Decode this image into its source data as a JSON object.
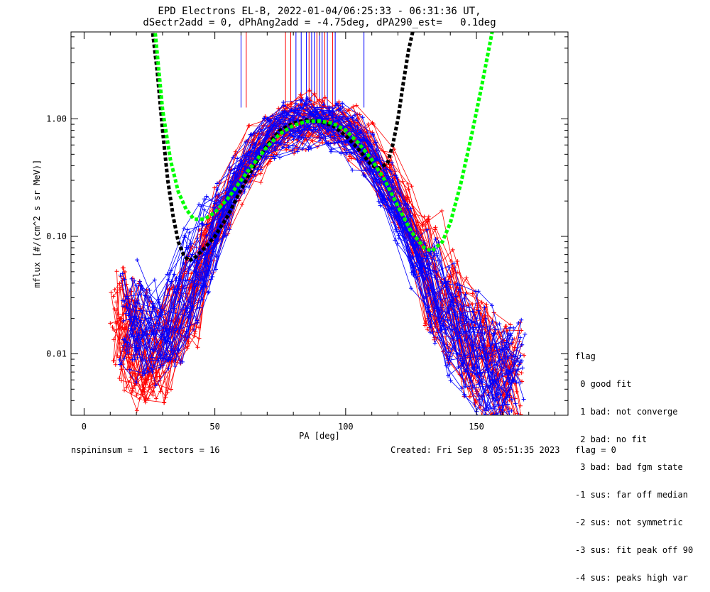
{
  "chart_data": {
    "type": "line",
    "title": "EPD Electrons EL-B, 2022-01-04/06:25:33 - 06:31:36 UT,",
    "subtitle": "dSectr2add = 0, dPhAng2add = -4.75deg, dPA290_est=   0.1deg",
    "xlabel": "PA [deg]",
    "ylabel": "mflux [#/(cm^2 s sr MeV)]",
    "xlim": [
      -5,
      185
    ],
    "ylim": [
      0.003,
      5.5
    ],
    "yscale": "log",
    "xticks": [
      0,
      50,
      100,
      150
    ],
    "yticks": [
      {
        "value": 0.01,
        "label": "0.01"
      },
      {
        "value": 0.1,
        "label": "0.10"
      },
      {
        "value": 1.0,
        "label": "1.00"
      }
    ],
    "grid": false,
    "colors": {
      "red": "#ff0000",
      "blue": "#0000ff",
      "black_fit": "#000000",
      "green_fit": "#00ff00"
    },
    "series": [
      {
        "color": "red",
        "style": "many-sweeps-with-plus-markers",
        "x": [
          14,
          17,
          22,
          28,
          34,
          41,
          47,
          53,
          59,
          65,
          72,
          78,
          84,
          90,
          96,
          103,
          109,
          116,
          122,
          128,
          134,
          141,
          147,
          153,
          159,
          165
        ],
        "y": [
          0.02,
          0.015,
          0.012,
          0.01,
          0.015,
          0.03,
          0.08,
          0.16,
          0.3,
          0.5,
          0.7,
          0.85,
          0.95,
          1.0,
          0.95,
          0.78,
          0.55,
          0.33,
          0.18,
          0.09,
          0.045,
          0.025,
          0.014,
          0.009,
          0.007,
          0.006
        ]
      },
      {
        "color": "blue",
        "style": "many-sweeps-with-plus-markers",
        "x": [
          17,
          22,
          28,
          34,
          41,
          47,
          53,
          59,
          65,
          72,
          78,
          84,
          90,
          96,
          103,
          109,
          116,
          122,
          128,
          134,
          141,
          147,
          153,
          159,
          165
        ],
        "y": [
          0.02,
          0.015,
          0.015,
          0.02,
          0.04,
          0.08,
          0.16,
          0.3,
          0.48,
          0.68,
          0.85,
          0.93,
          0.92,
          0.85,
          0.65,
          0.45,
          0.25,
          0.12,
          0.06,
          0.035,
          0.02,
          0.012,
          0.009,
          0.007,
          0.006
        ]
      },
      {
        "color": "black_fit",
        "style": "dashed-thick",
        "x": [
          26,
          28,
          30,
          32,
          34,
          36,
          38,
          40,
          42,
          45,
          50,
          55,
          60,
          65,
          70,
          75,
          80,
          85,
          90,
          95,
          100,
          105,
          110,
          113,
          116,
          118,
          120,
          122,
          124,
          126
        ],
        "y": [
          6.0,
          2.5,
          0.8,
          0.3,
          0.15,
          0.09,
          0.07,
          0.062,
          0.065,
          0.075,
          0.1,
          0.15,
          0.25,
          0.4,
          0.6,
          0.8,
          0.92,
          0.98,
          0.95,
          0.88,
          0.72,
          0.55,
          0.4,
          0.38,
          0.42,
          0.6,
          1.0,
          2.0,
          3.8,
          6.0
        ]
      },
      {
        "color": "green_fit",
        "style": "dashed-thick",
        "x": [
          27,
          30,
          33,
          36,
          39,
          42,
          46,
          50,
          55,
          60,
          65,
          70,
          75,
          80,
          85,
          90,
          95,
          100,
          105,
          110,
          115,
          120,
          125,
          130,
          133,
          137,
          140,
          144,
          148,
          152,
          156
        ],
        "y": [
          6.0,
          1.2,
          0.45,
          0.24,
          0.17,
          0.14,
          0.14,
          0.16,
          0.21,
          0.3,
          0.42,
          0.58,
          0.75,
          0.88,
          0.95,
          0.96,
          0.92,
          0.8,
          0.62,
          0.45,
          0.3,
          0.18,
          0.11,
          0.08,
          0.075,
          0.09,
          0.13,
          0.28,
          0.7,
          1.9,
          5.5
        ]
      }
    ],
    "legend": {
      "position": "right",
      "title": "flag",
      "entries": [
        " 0 good fit",
        " 1 bad: not converge",
        " 2 bad: no fit",
        " 3 bad: bad fgm state",
        "-1 sus: far off median",
        "-2 sus: not symmetric",
        "-3 sus: fit peak off 90",
        "-4 sus: peaks high var"
      ]
    },
    "footer": {
      "left": "nspininsum =  1  sectors = 16",
      "right": "Created: Fri Sep  8 05:51:35 2023   flag = 0"
    }
  }
}
